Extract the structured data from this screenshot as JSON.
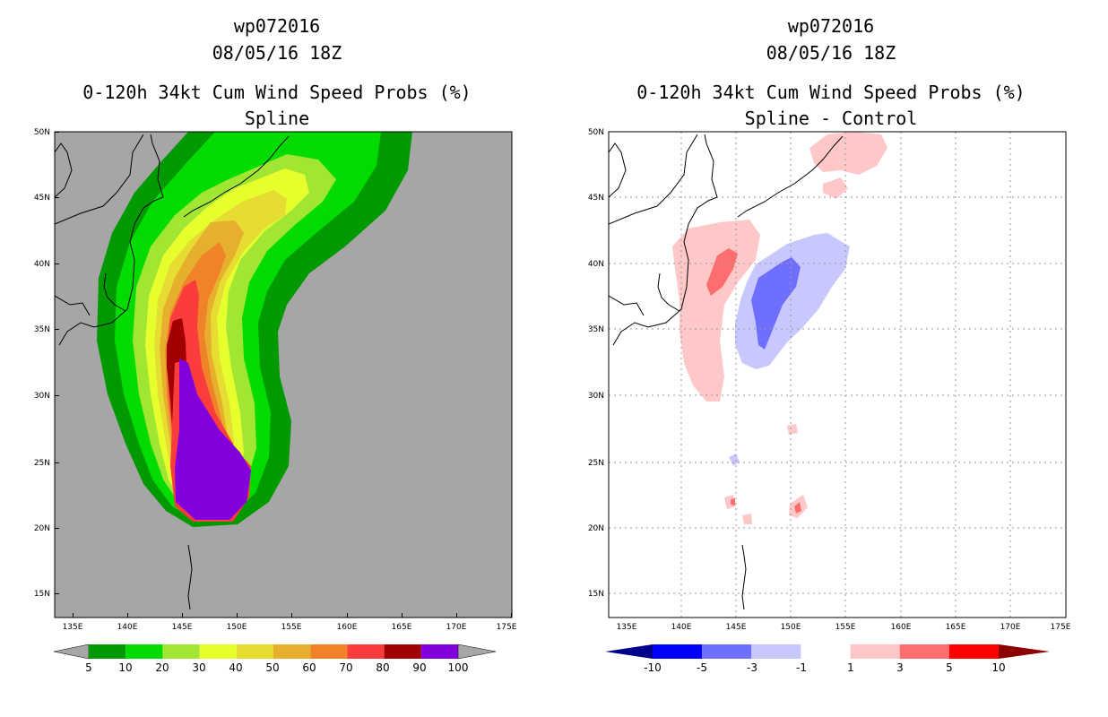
{
  "left": {
    "storm": "wp072016",
    "date": "08/05/16 18Z",
    "title": "0-120h 34kt Cum Wind Speed Probs (%)",
    "subtitle": "Spline"
  },
  "right": {
    "storm": "wp072016",
    "date": "08/05/16 18Z",
    "title": "0-120h 34kt Cum Wind Speed Probs (%)",
    "subtitle": "Spline - Control"
  },
  "chart_data": [
    {
      "type": "heatmap",
      "panel": "left",
      "title": "0-120h 34kt Cum Wind Speed Probs (%)",
      "subtitle": "Spline",
      "x_ticks": [
        "135E",
        "140E",
        "145E",
        "150E",
        "155E",
        "160E",
        "165E",
        "170E",
        "175E"
      ],
      "y_ticks": [
        "15N",
        "20N",
        "25N",
        "30N",
        "35N",
        "40N",
        "45N",
        "50N"
      ],
      "xlim": [
        133,
        175
      ],
      "ylim": [
        13,
        50
      ],
      "grid": false,
      "background_color": "#a6a6a6",
      "colorbar_levels": [
        5,
        10,
        20,
        30,
        40,
        50,
        60,
        70,
        80,
        90,
        100
      ],
      "colorbar_colors": [
        "#009a00",
        "#00dc00",
        "#a0e632",
        "#e6ff2d",
        "#e6dc32",
        "#e6af2d",
        "#f08228",
        "#fa3c3c",
        "#a00000",
        "#8200dc"
      ],
      "max_probability_region": "100% near 145E-150E, 20N-32N",
      "colors": {
        "land": "#a6a6a6",
        "coast": "#000000"
      }
    },
    {
      "type": "heatmap",
      "panel": "right",
      "title": "0-120h 34kt Cum Wind Speed Probs (%)",
      "subtitle": "Spline - Control",
      "x_ticks": [
        "135E",
        "140E",
        "145E",
        "150E",
        "155E",
        "160E",
        "165E",
        "170E",
        "175E"
      ],
      "y_ticks": [
        "15N",
        "20N",
        "25N",
        "30N",
        "35N",
        "40N",
        "45N",
        "50N"
      ],
      "xlim": [
        133,
        175
      ],
      "ylim": [
        13,
        50
      ],
      "grid": true,
      "colorbar_labels": [
        "-10",
        "-5",
        "-3",
        "-1",
        "1",
        "3",
        "5",
        "10"
      ],
      "colorbar_colors": [
        "#00008c",
        "#0000fa",
        "#6e6eff",
        "#c8c8ff",
        "#ffffff",
        "#ffc8c8",
        "#ff6e6e",
        "#ff0000",
        "#8c0000"
      ]
    }
  ]
}
